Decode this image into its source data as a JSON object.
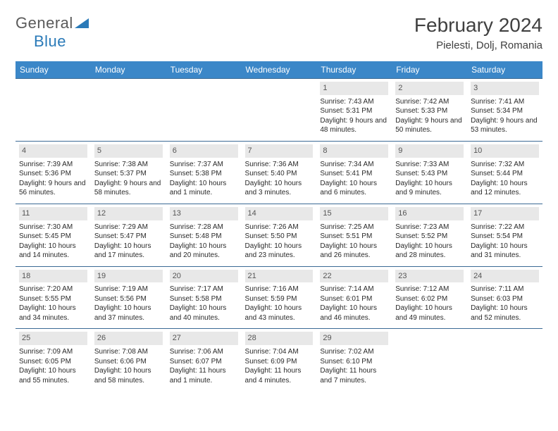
{
  "brand": {
    "name1": "General",
    "name2": "Blue"
  },
  "title": "February 2024",
  "location": "Pielesti, Dolj, Romania",
  "colors": {
    "header_bg": "#3b87c8",
    "header_text": "#ffffff",
    "row_border": "#3b6a95",
    "daynum_bg": "#e8e8e8",
    "logo_gray": "#5a5a5a",
    "logo_blue": "#2a7ab8"
  },
  "day_headers": [
    "Sunday",
    "Monday",
    "Tuesday",
    "Wednesday",
    "Thursday",
    "Friday",
    "Saturday"
  ],
  "weeks": [
    [
      null,
      null,
      null,
      null,
      {
        "n": "1",
        "sr": "7:43 AM",
        "ss": "5:31 PM",
        "dl": "9 hours and 48 minutes."
      },
      {
        "n": "2",
        "sr": "7:42 AM",
        "ss": "5:33 PM",
        "dl": "9 hours and 50 minutes."
      },
      {
        "n": "3",
        "sr": "7:41 AM",
        "ss": "5:34 PM",
        "dl": "9 hours and 53 minutes."
      }
    ],
    [
      {
        "n": "4",
        "sr": "7:39 AM",
        "ss": "5:36 PM",
        "dl": "9 hours and 56 minutes."
      },
      {
        "n": "5",
        "sr": "7:38 AM",
        "ss": "5:37 PM",
        "dl": "9 hours and 58 minutes."
      },
      {
        "n": "6",
        "sr": "7:37 AM",
        "ss": "5:38 PM",
        "dl": "10 hours and 1 minute."
      },
      {
        "n": "7",
        "sr": "7:36 AM",
        "ss": "5:40 PM",
        "dl": "10 hours and 3 minutes."
      },
      {
        "n": "8",
        "sr": "7:34 AM",
        "ss": "5:41 PM",
        "dl": "10 hours and 6 minutes."
      },
      {
        "n": "9",
        "sr": "7:33 AM",
        "ss": "5:43 PM",
        "dl": "10 hours and 9 minutes."
      },
      {
        "n": "10",
        "sr": "7:32 AM",
        "ss": "5:44 PM",
        "dl": "10 hours and 12 minutes."
      }
    ],
    [
      {
        "n": "11",
        "sr": "7:30 AM",
        "ss": "5:45 PM",
        "dl": "10 hours and 14 minutes."
      },
      {
        "n": "12",
        "sr": "7:29 AM",
        "ss": "5:47 PM",
        "dl": "10 hours and 17 minutes."
      },
      {
        "n": "13",
        "sr": "7:28 AM",
        "ss": "5:48 PM",
        "dl": "10 hours and 20 minutes."
      },
      {
        "n": "14",
        "sr": "7:26 AM",
        "ss": "5:50 PM",
        "dl": "10 hours and 23 minutes."
      },
      {
        "n": "15",
        "sr": "7:25 AM",
        "ss": "5:51 PM",
        "dl": "10 hours and 26 minutes."
      },
      {
        "n": "16",
        "sr": "7:23 AM",
        "ss": "5:52 PM",
        "dl": "10 hours and 28 minutes."
      },
      {
        "n": "17",
        "sr": "7:22 AM",
        "ss": "5:54 PM",
        "dl": "10 hours and 31 minutes."
      }
    ],
    [
      {
        "n": "18",
        "sr": "7:20 AM",
        "ss": "5:55 PM",
        "dl": "10 hours and 34 minutes."
      },
      {
        "n": "19",
        "sr": "7:19 AM",
        "ss": "5:56 PM",
        "dl": "10 hours and 37 minutes."
      },
      {
        "n": "20",
        "sr": "7:17 AM",
        "ss": "5:58 PM",
        "dl": "10 hours and 40 minutes."
      },
      {
        "n": "21",
        "sr": "7:16 AM",
        "ss": "5:59 PM",
        "dl": "10 hours and 43 minutes."
      },
      {
        "n": "22",
        "sr": "7:14 AM",
        "ss": "6:01 PM",
        "dl": "10 hours and 46 minutes."
      },
      {
        "n": "23",
        "sr": "7:12 AM",
        "ss": "6:02 PM",
        "dl": "10 hours and 49 minutes."
      },
      {
        "n": "24",
        "sr": "7:11 AM",
        "ss": "6:03 PM",
        "dl": "10 hours and 52 minutes."
      }
    ],
    [
      {
        "n": "25",
        "sr": "7:09 AM",
        "ss": "6:05 PM",
        "dl": "10 hours and 55 minutes."
      },
      {
        "n": "26",
        "sr": "7:08 AM",
        "ss": "6:06 PM",
        "dl": "10 hours and 58 minutes."
      },
      {
        "n": "27",
        "sr": "7:06 AM",
        "ss": "6:07 PM",
        "dl": "11 hours and 1 minute."
      },
      {
        "n": "28",
        "sr": "7:04 AM",
        "ss": "6:09 PM",
        "dl": "11 hours and 4 minutes."
      },
      {
        "n": "29",
        "sr": "7:02 AM",
        "ss": "6:10 PM",
        "dl": "11 hours and 7 minutes."
      },
      null,
      null
    ]
  ],
  "labels": {
    "sunrise": "Sunrise:",
    "sunset": "Sunset:",
    "daylight": "Daylight:"
  }
}
